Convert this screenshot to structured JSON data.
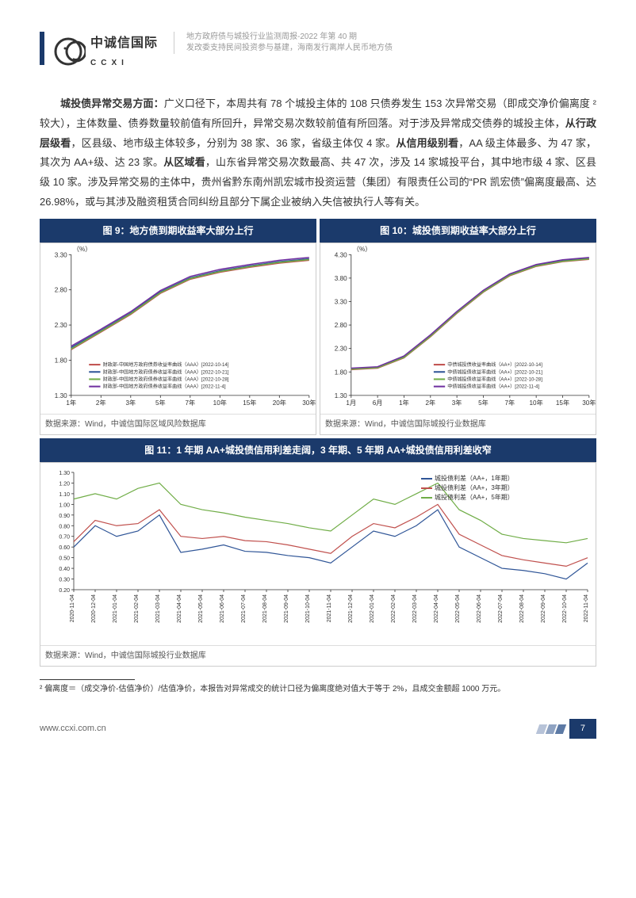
{
  "header": {
    "logo_zh": "中诚信国际",
    "logo_en": "CCXI",
    "line1": "地方政府债与城投行业监测周报-2022 年第 40 期",
    "line2": "发改委支持民间投资参与基建，海南发行离岸人民币地方债"
  },
  "paragraph": {
    "text_full": "城投债异常交易方面：广义口径下，本周共有 78 个城投主体的 108 只债券发生 153 次异常交易（即成交净价偏离度 ²较大），主体数量、债券数量较前值有所回升，异常交易次数较前值有所回落。对于涉及异常成交债券的城投主体，从行政层级看，区县级、地市级主体较多，分别为 38 家、36 家，省级主体仅 4 家。从信用级别看，AA 级主体最多、为 47 家，其次为 AA+级、达 23 家。从区域看，山东省异常交易次数最高、共 47 次，涉及 14 家城投平台，其中地市级 4 家、区县级 10 家。涉及异常交易的主体中，贵州省黔东南州凯宏城市投资运营（集团）有限责任公司的“PR 凯宏债”偏离度最高、达 26.98%，或与其涉及融资租赁合同纠纷且部分下属企业被纳入失信被执行人等有关。"
  },
  "chart9": {
    "title": "图 9：地方债到期收益率大部分上行",
    "source": "数据来源：Wind，中诚信国际区域风险数据库",
    "type": "line",
    "ylabel": "（%）",
    "ylim": [
      1.3,
      3.3
    ],
    "ytick_step": 0.5,
    "x_labels": [
      "1年",
      "2年",
      "3年",
      "5年",
      "7年",
      "10年",
      "15年",
      "20年",
      "30年"
    ],
    "series": [
      {
        "name": "财政部-中国地方政府债券收益率曲线（AAA）[2022-10-14]",
        "color": "#c0504d",
        "values": [
          1.95,
          2.2,
          2.45,
          2.75,
          2.95,
          3.05,
          3.12,
          3.18,
          3.22
        ]
      },
      {
        "name": "财政部-中国地方政府债券收益率曲线（AAA）[2022-10-21]",
        "color": "#2f5597",
        "values": [
          1.98,
          2.22,
          2.47,
          2.77,
          2.97,
          3.07,
          3.14,
          3.2,
          3.24
        ]
      },
      {
        "name": "财政部-中国地方政府债券收益率曲线（AAA）[2022-10-28]",
        "color": "#70ad47",
        "values": [
          1.96,
          2.21,
          2.46,
          2.76,
          2.96,
          3.06,
          3.13,
          3.19,
          3.23
        ]
      },
      {
        "name": "财政部-中国地方政府债券收益率曲线（AAA）[2022-11-4]",
        "color": "#7030a0",
        "values": [
          2.0,
          2.24,
          2.49,
          2.79,
          2.99,
          3.09,
          3.16,
          3.22,
          3.26
        ]
      }
    ],
    "background_color": "#ffffff",
    "grid": false,
    "line_width": 1.5,
    "legend_fontsize": 6,
    "axis_fontsize": 8
  },
  "chart10": {
    "title": "图 10：城投债到期收益率大部分上行",
    "source": "数据来源：Wind，中诚信国际城投行业数据库",
    "type": "line",
    "ylabel": "（%）",
    "ylim": [
      1.3,
      4.3
    ],
    "ytick_step": 0.5,
    "x_labels": [
      "1月",
      "6月",
      "1年",
      "2年",
      "3年",
      "5年",
      "7年",
      "10年",
      "15年",
      "30年"
    ],
    "series": [
      {
        "name": "中债城投债收益率曲线（AA+）[2022-10-14]",
        "color": "#c0504d",
        "values": [
          1.85,
          1.88,
          2.1,
          2.55,
          3.05,
          3.5,
          3.85,
          4.05,
          4.15,
          4.2
        ]
      },
      {
        "name": "中债城投债收益率曲线（AA+）[2022-10-21]",
        "color": "#2f5597",
        "values": [
          1.87,
          1.9,
          2.12,
          2.57,
          3.07,
          3.52,
          3.87,
          4.07,
          4.17,
          4.22
        ]
      },
      {
        "name": "中债城投债收益率曲线（AA+）[2022-10-28]",
        "color": "#70ad47",
        "values": [
          1.86,
          1.89,
          2.11,
          2.56,
          3.06,
          3.51,
          3.86,
          4.06,
          4.16,
          4.21
        ]
      },
      {
        "name": "中债城投债收益率曲线（AA+）[2022-11-4]",
        "color": "#7030a0",
        "values": [
          1.88,
          1.91,
          2.14,
          2.59,
          3.09,
          3.54,
          3.89,
          4.09,
          4.19,
          4.24
        ]
      }
    ],
    "background_color": "#ffffff",
    "grid": false,
    "line_width": 1.5,
    "legend_fontsize": 6,
    "axis_fontsize": 8
  },
  "chart11": {
    "title": "图 11：1 年期 AA+城投债信用利差走阔，3 年期、5 年期 AA+城投债信用利差收窄",
    "source": "数据来源：Wind，中诚信国际城投行业数据库",
    "type": "line",
    "ylim": [
      0.2,
      1.3
    ],
    "ytick_step": 0.1,
    "x_labels": [
      "2020-11-04",
      "2020-12-04",
      "2021-01-04",
      "2021-02-04",
      "2021-03-04",
      "2021-04-04",
      "2021-05-04",
      "2021-06-04",
      "2021-07-04",
      "2021-08-04",
      "2021-09-04",
      "2021-10-04",
      "2021-11-04",
      "2021-12-04",
      "2022-01-04",
      "2022-02-04",
      "2022-03-04",
      "2022-04-04",
      "2022-05-04",
      "2022-06-04",
      "2022-07-04",
      "2022-08-04",
      "2022-09-04",
      "2022-10-04",
      "2022-11-04"
    ],
    "series": [
      {
        "name": "城投债利差（AA+，1年期）",
        "color": "#2f5597",
        "values": [
          0.6,
          0.8,
          0.7,
          0.75,
          0.9,
          0.55,
          0.58,
          0.62,
          0.56,
          0.55,
          0.52,
          0.5,
          0.45,
          0.6,
          0.75,
          0.7,
          0.8,
          0.95,
          0.6,
          0.5,
          0.4,
          0.38,
          0.35,
          0.3,
          0.45
        ]
      },
      {
        "name": "城投债利差（AA+，3年期）",
        "color": "#c0504d",
        "values": [
          0.65,
          0.85,
          0.8,
          0.82,
          0.95,
          0.7,
          0.68,
          0.7,
          0.66,
          0.65,
          0.62,
          0.58,
          0.54,
          0.7,
          0.82,
          0.78,
          0.88,
          1.0,
          0.72,
          0.62,
          0.52,
          0.48,
          0.45,
          0.42,
          0.5
        ]
      },
      {
        "name": "城投债利差（AA+，5年期）",
        "color": "#70ad47",
        "values": [
          1.05,
          1.1,
          1.05,
          1.15,
          1.2,
          1.0,
          0.95,
          0.92,
          0.88,
          0.85,
          0.82,
          0.78,
          0.75,
          0.9,
          1.05,
          1.0,
          1.1,
          1.2,
          0.95,
          0.85,
          0.72,
          0.68,
          0.66,
          0.64,
          0.68
        ]
      }
    ],
    "background_color": "#ffffff",
    "grid": false,
    "line_width": 1.2,
    "legend_fontsize": 8,
    "axis_fontsize": 7
  },
  "footnote": "² 偏离度＝（成交净价-估值净价）/估值净价，本报告对异常成交的统计口径为偏离度绝对值大于等于 2%，且成交金额超 1000 万元。",
  "footer": {
    "url": "www.ccxi.com.cn",
    "page": "7"
  },
  "colors": {
    "brand_navy": "#1b3a6b",
    "text_grey": "#999999"
  }
}
